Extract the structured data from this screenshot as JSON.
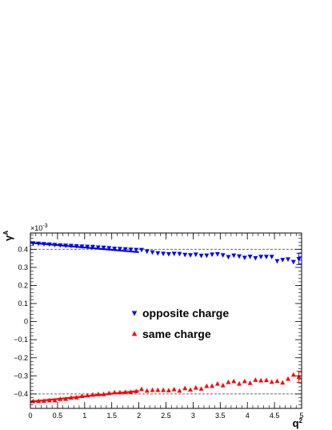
{
  "chart_data": {
    "type": "scatter",
    "ylabel": "γ",
    "ylabel_sup": "A",
    "xlabel": "q",
    "xlabel_sup": "2",
    "y_multiplier": "×10",
    "y_multiplier_exp": "-3",
    "xlim": [
      0,
      5
    ],
    "ylim": [
      -0.48,
      0.49
    ],
    "x_ticks": [
      0,
      0.5,
      1,
      1.5,
      2,
      2.5,
      3,
      3.5,
      4,
      4.5,
      5
    ],
    "x_tick_labels": [
      "0",
      "0.5",
      "1",
      "1.5",
      "2",
      "2.5",
      "3",
      "3.5",
      "4",
      "4.5",
      "5"
    ],
    "y_ticks": [
      -0.4,
      -0.3,
      -0.2,
      -0.1,
      0,
      0.1,
      0.2,
      0.3,
      0.4
    ],
    "y_tick_labels": [
      "−0.4",
      "−0.3",
      "−0.2",
      "−0.1",
      "0",
      "0.1",
      "0.2",
      "0.3",
      "0.4"
    ],
    "reference_lines": [
      0.4,
      -0.4
    ],
    "legend_position": "center",
    "series": [
      {
        "name": "opposite charge",
        "color": "#0000ff",
        "marker": "triangle-down",
        "x": [
          0.05,
          0.15,
          0.25,
          0.35,
          0.45,
          0.55,
          0.65,
          0.75,
          0.85,
          0.95,
          1.05,
          1.15,
          1.25,
          1.35,
          1.45,
          1.55,
          1.65,
          1.75,
          1.85,
          1.95,
          2.05,
          2.15,
          2.25,
          2.35,
          2.45,
          2.55,
          2.65,
          2.75,
          2.85,
          2.95,
          3.05,
          3.15,
          3.25,
          3.35,
          3.45,
          3.55,
          3.65,
          3.75,
          3.85,
          3.95,
          4.05,
          4.15,
          4.25,
          4.35,
          4.45,
          4.55,
          4.65,
          4.75,
          4.85,
          4.95
        ],
        "y": [
          0.434,
          0.432,
          0.43,
          0.428,
          0.425,
          0.423,
          0.421,
          0.42,
          0.418,
          0.416,
          0.415,
          0.414,
          0.411,
          0.41,
          0.407,
          0.404,
          0.403,
          0.401,
          0.399,
          0.397,
          0.397,
          0.389,
          0.384,
          0.379,
          0.376,
          0.374,
          0.376,
          0.375,
          0.37,
          0.368,
          0.372,
          0.365,
          0.366,
          0.372,
          0.374,
          0.368,
          0.358,
          0.366,
          0.362,
          0.354,
          0.36,
          0.352,
          0.359,
          0.359,
          0.359,
          0.335,
          0.342,
          0.345,
          0.331,
          0.347
        ]
      },
      {
        "name": "same charge",
        "color": "#ff0000",
        "marker": "triangle-up",
        "x": [
          0.05,
          0.15,
          0.25,
          0.35,
          0.45,
          0.55,
          0.65,
          0.75,
          0.85,
          0.95,
          1.05,
          1.15,
          1.25,
          1.35,
          1.45,
          1.55,
          1.65,
          1.75,
          1.85,
          1.95,
          2.05,
          2.15,
          2.25,
          2.35,
          2.45,
          2.55,
          2.65,
          2.75,
          2.85,
          2.95,
          3.05,
          3.15,
          3.25,
          3.35,
          3.45,
          3.55,
          3.65,
          3.75,
          3.85,
          3.95,
          4.05,
          4.15,
          4.25,
          4.35,
          4.45,
          4.55,
          4.65,
          4.75,
          4.85,
          4.95
        ],
        "y": [
          -0.441,
          -0.44,
          -0.439,
          -0.436,
          -0.436,
          -0.429,
          -0.428,
          -0.421,
          -0.42,
          -0.412,
          -0.409,
          -0.405,
          -0.402,
          -0.402,
          -0.396,
          -0.392,
          -0.392,
          -0.39,
          -0.39,
          -0.385,
          -0.374,
          -0.383,
          -0.379,
          -0.379,
          -0.379,
          -0.381,
          -0.375,
          -0.383,
          -0.369,
          -0.377,
          -0.366,
          -0.372,
          -0.357,
          -0.356,
          -0.344,
          -0.353,
          -0.335,
          -0.33,
          -0.344,
          -0.33,
          -0.34,
          -0.323,
          -0.326,
          -0.324,
          -0.334,
          -0.329,
          -0.338,
          -0.317,
          -0.294,
          -0.306
        ]
      }
    ],
    "fits": [
      {
        "series": "opposite charge",
        "color": "#0000ff",
        "x": [
          0,
          2
        ],
        "y": [
          0.436,
          0.384
        ]
      },
      {
        "series": "same charge",
        "color": "#ff0000",
        "x": [
          0,
          2
        ],
        "y": [
          -0.443,
          -0.384
        ]
      }
    ]
  }
}
